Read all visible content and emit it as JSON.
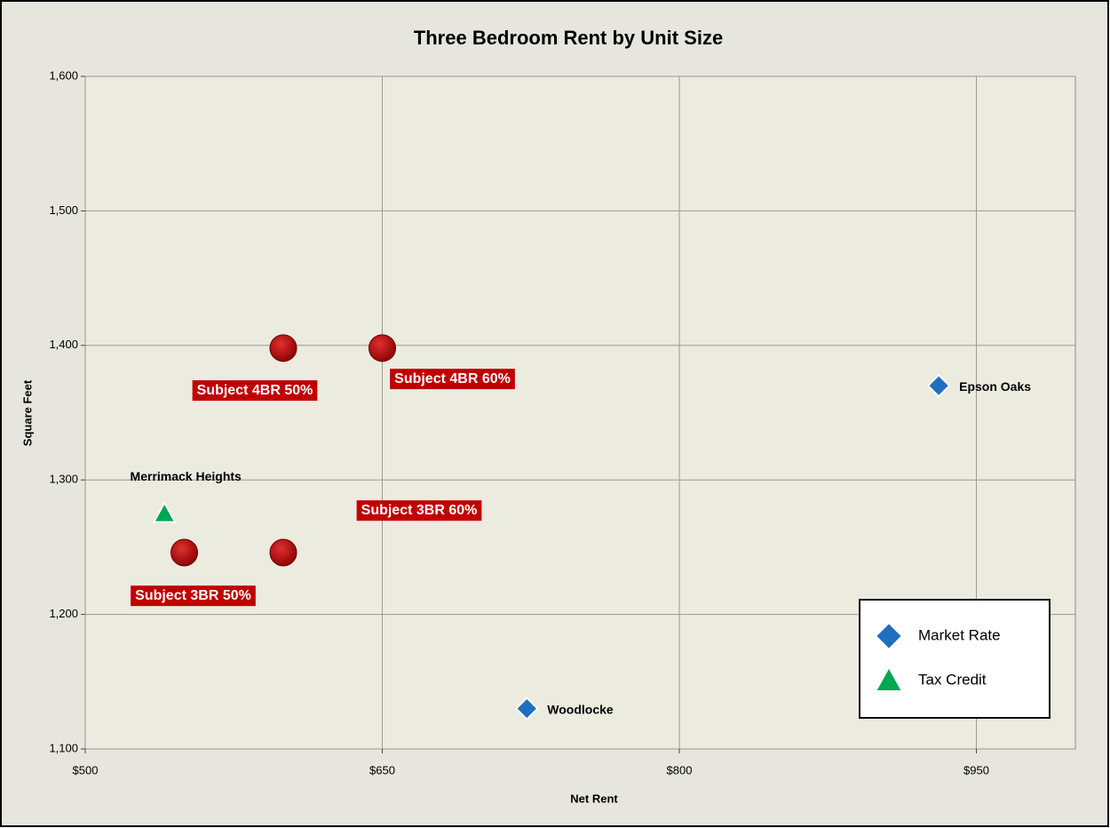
{
  "chart_data": {
    "type": "scatter",
    "title": "Three Bedroom Rent by Unit Size",
    "x_label": "Net Rent",
    "y_label": "Square Feet",
    "xlim": [
      500,
      1000
    ],
    "ylim": [
      1100,
      1600
    ],
    "xticks": [
      {
        "value": 500,
        "label": "$500"
      },
      {
        "value": 650,
        "label": "$650"
      },
      {
        "value": 800,
        "label": "$800"
      },
      {
        "value": 950,
        "label": "$950"
      }
    ],
    "yticks": [
      {
        "value": 1100,
        "label": "1,100"
      },
      {
        "value": 1200,
        "label": "1,200"
      },
      {
        "value": 1300,
        "label": "1,300"
      },
      {
        "value": 1400,
        "label": "1,400"
      },
      {
        "value": 1500,
        "label": "1,500"
      },
      {
        "value": 1600,
        "label": "1,600"
      }
    ],
    "grid": true,
    "legend": "lower right",
    "series": [
      {
        "name": "Market Rate",
        "color": "#1f6fc0",
        "marker": "diamond",
        "x": [
          931,
          723
        ],
        "values": [
          1370,
          1130
        ],
        "labels": [
          "Epson Oaks",
          "Woodlocke"
        ]
      },
      {
        "name": "Tax Credit",
        "color": "#00a651",
        "marker": "triangle",
        "x": [
          540
        ],
        "values": [
          1275
        ],
        "labels": [
          "Merrimack Heights"
        ]
      },
      {
        "color": "#c00000",
        "marker": "circle",
        "x": [
          600,
          650,
          550,
          600
        ],
        "values": [
          1398,
          1398,
          1246,
          1246
        ],
        "labels": [
          "Subject 4BR 50%",
          "Subject 4BR 60%",
          "Subject 3BR 50%",
          "Subject 3BR 60%"
        ]
      }
    ]
  }
}
